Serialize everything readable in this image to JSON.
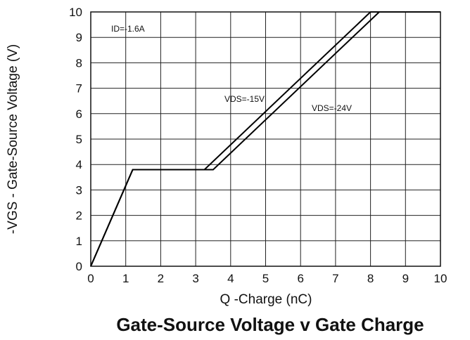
{
  "chart_data": {
    "type": "line",
    "title": "Gate-Source Voltage v Gate Charge",
    "xlabel": "Q -Charge (nC)",
    "ylabel": "-VGS - Gate-Source Voltage (V)",
    "xlim": [
      0,
      10
    ],
    "ylim": [
      0,
      10
    ],
    "grid": true,
    "x_ticks": [
      "0",
      "1",
      "2",
      "3",
      "4",
      "5",
      "6",
      "7",
      "8",
      "9",
      "10"
    ],
    "y_ticks": [
      "0",
      "1",
      "2",
      "3",
      "4",
      "5",
      "6",
      "7",
      "8",
      "9",
      "10"
    ],
    "annotations": [
      {
        "text": "ID=-1.6A"
      },
      {
        "text": "VDS=-15V"
      },
      {
        "text": "VDS=-24V"
      }
    ],
    "series": [
      {
        "label": "VDS=-15V",
        "x": [
          0,
          1.2,
          3.25,
          8.0,
          10
        ],
        "y": [
          0,
          3.8,
          3.8,
          10,
          10
        ]
      },
      {
        "label": "VDS=-24V",
        "x": [
          0,
          1.2,
          3.5,
          8.25,
          10
        ],
        "y": [
          0,
          3.8,
          3.8,
          10,
          10
        ]
      }
    ]
  }
}
